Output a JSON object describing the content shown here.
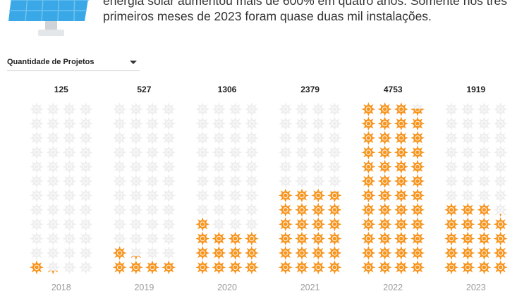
{
  "intro": {
    "line1": "energia solar aumentou mais de 600% em quatro anos. Somente nos três",
    "line2": "primeiros meses de 2023 foram quase duas mil instalações."
  },
  "selector": {
    "label": "Quantidade de Projetos"
  },
  "colors": {
    "filled": "#f7941d",
    "empty": "#eeeeee",
    "year": "#999999",
    "panel": "#3aa8e6"
  },
  "chart_data": {
    "type": "pictogram",
    "unit_per_icon": 100,
    "grid": {
      "columns": 4,
      "rows": 12
    },
    "categories": [
      "2018",
      "2019",
      "2020",
      "2021",
      "2022",
      "2023"
    ],
    "values": [
      125,
      527,
      1306,
      2379,
      4753,
      1919
    ],
    "labels": [
      "125",
      "527",
      "1306",
      "2379",
      "4753",
      "1919"
    ]
  }
}
